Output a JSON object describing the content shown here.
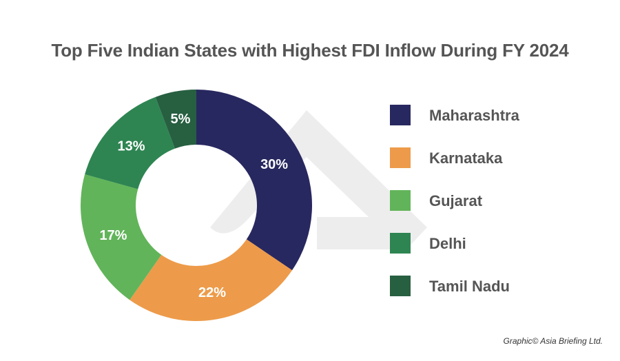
{
  "chart_data": {
    "type": "pie",
    "title": "Top Five Indian States with Highest FDI Inflow During FY 2024",
    "categories": [
      "Maharashtra",
      "Karnataka",
      "Gujarat",
      "Delhi",
      "Tamil Nadu"
    ],
    "values": [
      30,
      22,
      17,
      13,
      5
    ],
    "labels": [
      "30%",
      "22%",
      "17%",
      "13%",
      "5%"
    ],
    "colors": [
      "#282860",
      "#ED9B4A",
      "#62B45A",
      "#2E8552",
      "#275F41"
    ],
    "legend_position": "right"
  },
  "credit": "Graphic© Asia Briefing Ltd."
}
